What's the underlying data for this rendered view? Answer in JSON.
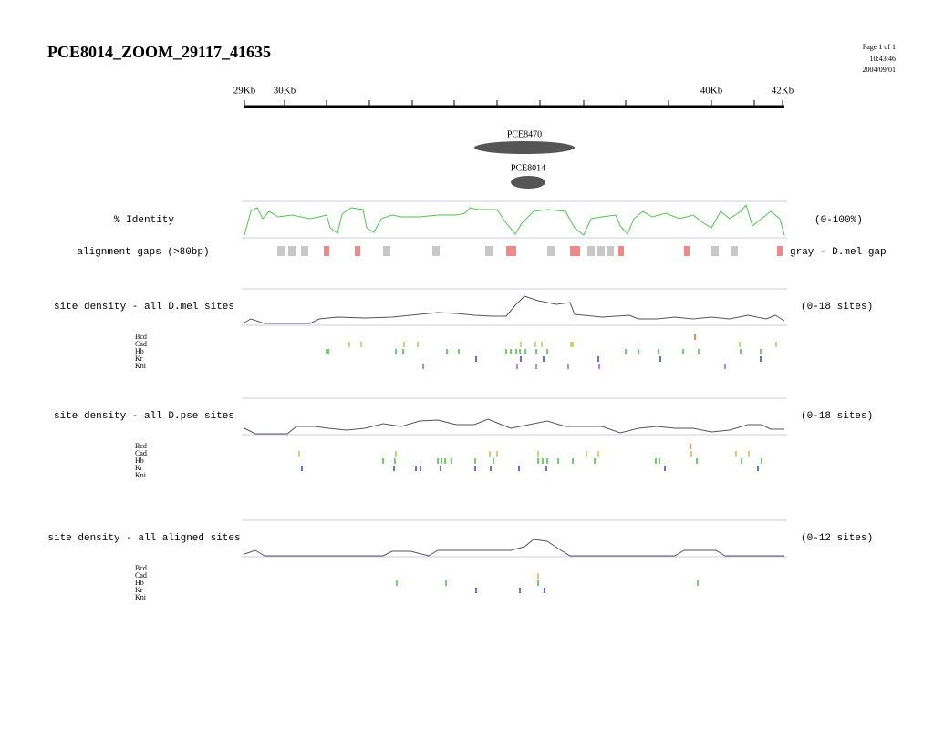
{
  "header": {
    "title": "PCE8014_ZOOM_29117_41635",
    "page_info": [
      "Page 1 of 1",
      "10:43:46",
      "2004/09/01"
    ]
  },
  "ruler": {
    "labels": [
      "29Kb",
      "30Kb",
      "40Kb",
      "42Kb"
    ]
  },
  "features": [
    "PCE8470",
    "PCE8014"
  ],
  "tracks": {
    "identity": {
      "label": "% Identity",
      "range": "(0-100%)"
    },
    "gaps": {
      "label": "alignment gaps (>80bp)",
      "legend": "gray - D.mel gap"
    },
    "density": [
      {
        "label": "site density - all D.mel sites",
        "range": "(0-18 sites)",
        "factors": [
          "Bcd",
          "Cad",
          "Hb",
          "Kr",
          "Kni"
        ]
      },
      {
        "label": "site density - all D.pse sites",
        "range": "(0-18 sites)",
        "factors": [
          "Bcd",
          "Cad",
          "Hb",
          "Kr",
          "Kni"
        ]
      },
      {
        "label": "site density - all aligned sites",
        "range": "(0-12 sites)",
        "factors": [
          "Bcd",
          "Cad",
          "Hb",
          "Kr",
          "Kni"
        ]
      }
    ]
  }
}
